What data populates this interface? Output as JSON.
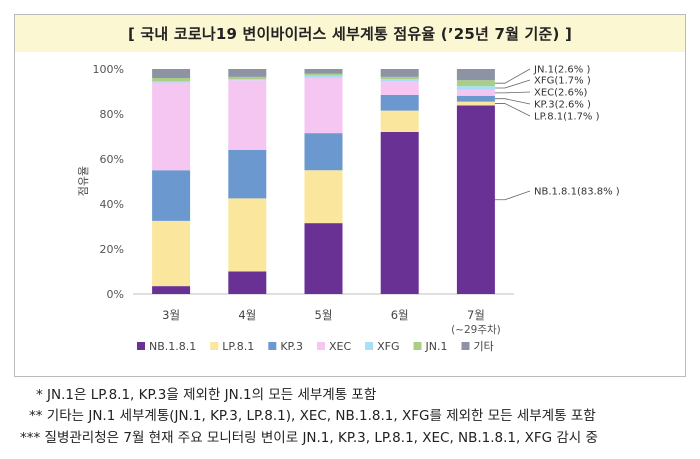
{
  "chart_data": {
    "type": "bar",
    "stacked": true,
    "title": "[ 국내 코로나19 변이바이러스 세부계통 점유율 (’25년 7월 기준) ]",
    "ylabel": "점유율",
    "ylim": [
      0,
      100
    ],
    "yticks": [
      "0%",
      "20%",
      "40%",
      "60%",
      "80%",
      "100%"
    ],
    "grid": false,
    "legend_position": "bottom",
    "categories": [
      "3월",
      "4월",
      "5월",
      "6월",
      "7월"
    ],
    "category_sublabels": [
      "",
      "",
      "",
      "",
      "(~29주차)"
    ],
    "series": [
      {
        "name": "NB.1.8.1",
        "color": "#6a3195",
        "values": [
          3.5,
          10.0,
          31.5,
          72.0,
          83.8
        ]
      },
      {
        "name": "LP.8.1",
        "color": "#fbe69e",
        "values": [
          29.0,
          32.5,
          23.5,
          9.5,
          1.7
        ]
      },
      {
        "name": "KP.3",
        "color": "#6b98cf",
        "values": [
          22.5,
          21.5,
          16.5,
          7.0,
          2.6
        ]
      },
      {
        "name": "XEC",
        "color": "#f5c6f2",
        "values": [
          39.0,
          31.0,
          24.5,
          6.0,
          2.6
        ]
      },
      {
        "name": "XFG",
        "color": "#a9def7",
        "values": [
          0.5,
          0.5,
          1.0,
          1.0,
          1.7
        ]
      },
      {
        "name": "JN.1",
        "color": "#a9cf86",
        "values": [
          1.5,
          1.0,
          1.0,
          1.0,
          2.6
        ]
      },
      {
        "name": "기타",
        "color": "#8d93a2",
        "values": [
          4.0,
          3.5,
          2.0,
          3.5,
          5.0
        ]
      }
    ],
    "annotations": [
      {
        "text": "JN.1(2.6% )",
        "series": "JN.1"
      },
      {
        "text": "XFG(1.7% )",
        "series": "XFG"
      },
      {
        "text": "XEC(2.6%)",
        "series": "XEC"
      },
      {
        "text": "KP.3(2.6% )",
        "series": "KP.3"
      },
      {
        "text": "LP.8.1(1.7% )",
        "series": "LP.8.1"
      },
      {
        "text": "NB.1.8.1(83.8% )",
        "series": "NB.1.8.1"
      }
    ]
  },
  "notes": [
    "* JN.1은 LP.8.1, KP.3을 제외한 JN.1의 모든 세부계통 포함",
    "** 기타는 JN.1 세부계통(JN.1, KP.3, LP.8.1), XEC, NB.1.8.1, XFG를 제외한 모든 세부계통 포함",
    "*** 질병관리청은 7월 현재 주요 모니터링 변이로 JN.1, KP.3, LP.8.1, XEC, NB.1.8.1, XFG 감시 중"
  ]
}
